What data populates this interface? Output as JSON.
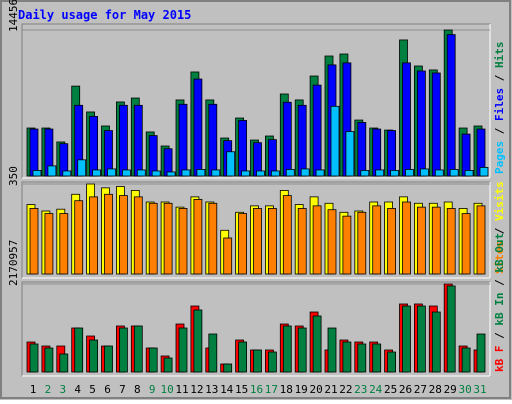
{
  "chart_data": [
    {
      "type": "bar",
      "title": "Daily usage for May 2015",
      "ylim": [
        0,
        14456
      ],
      "yticks": [
        14456
      ],
      "legend_separator": " / ",
      "legend": [
        {
          "name": "Pages",
          "color": "#00c0ff"
        },
        {
          "name": "Files",
          "color": "#0000ff"
        },
        {
          "name": "Hits",
          "color": "#008040"
        }
      ],
      "series": [
        {
          "color": "#008040",
          "values": [
            4750,
            4750,
            3370,
            8900,
            6340,
            4950,
            7330,
            7720,
            4360,
            2970,
            7530,
            10300,
            7530,
            3760,
            5740,
            3560,
            3960,
            8120,
            7530,
            9900,
            11880,
            12080,
            5540,
            4750,
            4550,
            13470,
            10890,
            10500,
            14456,
            4750,
            4950
          ]
        },
        {
          "color": "#0000ff",
          "values": [
            4650,
            4650,
            3200,
            7000,
            5900,
            4500,
            7000,
            7000,
            4000,
            2700,
            7100,
            9600,
            7100,
            3500,
            5500,
            3300,
            3600,
            7300,
            7000,
            9000,
            11000,
            11200,
            5300,
            4650,
            4500,
            11200,
            10400,
            10200,
            14000,
            4150,
            4650
          ]
        },
        {
          "color": "#00c0ff",
          "values": [
            550,
            1000,
            500,
            1600,
            600,
            700,
            600,
            600,
            500,
            400,
            600,
            650,
            600,
            2400,
            500,
            500,
            500,
            650,
            700,
            600,
            6900,
            4400,
            550,
            600,
            550,
            650,
            700,
            600,
            650,
            550,
            850
          ]
        }
      ]
    },
    {
      "type": "bar",
      "ylim": [
        0,
        350
      ],
      "yticks": [
        350
      ],
      "legend_separator": " / ",
      "legend": [
        {
          "name": "Sites",
          "color": "#ff8000"
        },
        {
          "name": "Visits",
          "color": "#ffff00"
        }
      ],
      "series": [
        {
          "color": "#ffff00",
          "values": [
            270,
            245,
            252,
            310,
            350,
            335,
            340,
            325,
            280,
            280,
            260,
            300,
            280,
            170,
            240,
            265,
            265,
            325,
            270,
            300,
            275,
            240,
            245,
            280,
            280,
            300,
            275,
            275,
            280,
            255,
            275
          ]
        },
        {
          "color": "#ff8000",
          "values": [
            255,
            235,
            235,
            285,
            300,
            310,
            305,
            300,
            275,
            275,
            255,
            290,
            275,
            140,
            235,
            255,
            255,
            305,
            255,
            265,
            250,
            225,
            240,
            265,
            255,
            280,
            260,
            260,
            255,
            235,
            265
          ]
        }
      ]
    },
    {
      "type": "bar",
      "ylim": [
        0,
        2170957
      ],
      "yticks": [
        2170957
      ],
      "legend_separator": " / ",
      "legend": [
        {
          "name": "kB F",
          "color": "#ff0000"
        },
        {
          "name": "kB In",
          "color": "#008040"
        },
        {
          "name": "kB Out",
          "color": "#008040"
        }
      ],
      "categories": [
        "1",
        "2",
        "3",
        "4",
        "5",
        "6",
        "7",
        "8",
        "9",
        "10",
        "11",
        "12",
        "13",
        "14",
        "15",
        "16",
        "17",
        "18",
        "19",
        "20",
        "21",
        "22",
        "23",
        "24",
        "25",
        "26",
        "27",
        "28",
        "29",
        "30",
        "31"
      ],
      "category_colors": [
        "#000000",
        "#008040",
        "#008040",
        "#000000",
        "#000000",
        "#000000",
        "#000000",
        "#000000",
        "#008040",
        "#008040",
        "#000000",
        "#000000",
        "#000000",
        "#000000",
        "#000000",
        "#008040",
        "#008040",
        "#000000",
        "#000000",
        "#000000",
        "#000000",
        "#000000",
        "#008040",
        "#008040",
        "#000000",
        "#000000",
        "#000000",
        "#000000",
        "#000000",
        "#008040",
        "#008040"
      ],
      "series": [
        {
          "color": "#ff0000",
          "values": [
            740000,
            641000,
            641000,
            1085000,
            888000,
            641000,
            1135000,
            1135000,
            592000,
            395000,
            1184000,
            1628000,
            592000,
            197000,
            789000,
            543000,
            543000,
            1184000,
            1135000,
            1480000,
            543000,
            789000,
            740000,
            740000,
            543000,
            1678000,
            1678000,
            1628000,
            2170957,
            641000,
            543000
          ]
        },
        {
          "color": "#008040",
          "values": [
            691000,
            592000,
            444000,
            1085000,
            789000,
            641000,
            1085000,
            1135000,
            592000,
            345000,
            1085000,
            1530000,
            937000,
            197000,
            740000,
            543000,
            493000,
            1135000,
            1085000,
            1382000,
            1085000,
            740000,
            691000,
            691000,
            493000,
            1628000,
            1628000,
            1480000,
            2122000,
            592000,
            937000
          ]
        }
      ]
    }
  ]
}
